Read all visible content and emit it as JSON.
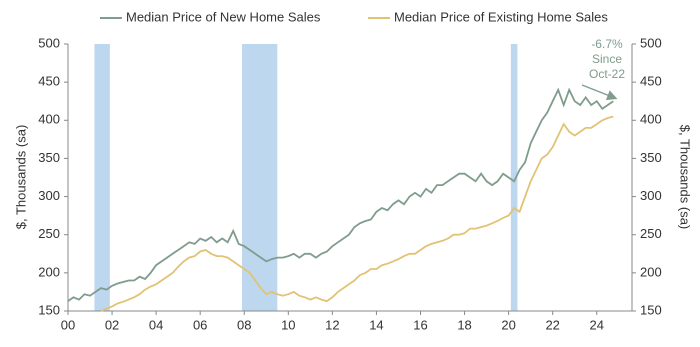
{
  "chart_data": {
    "type": "line",
    "legend": "top",
    "x": [
      2000,
      2000.25,
      2000.5,
      2000.75,
      2001,
      2001.25,
      2001.5,
      2001.75,
      2002,
      2002.25,
      2002.5,
      2002.75,
      2003,
      2003.25,
      2003.5,
      2003.75,
      2004,
      2004.25,
      2004.5,
      2004.75,
      2005,
      2005.25,
      2005.5,
      2005.75,
      2006,
      2006.25,
      2006.5,
      2006.75,
      2007,
      2007.25,
      2007.5,
      2007.75,
      2008,
      2008.25,
      2008.5,
      2008.75,
      2009,
      2009.25,
      2009.5,
      2009.75,
      2010,
      2010.25,
      2010.5,
      2010.75,
      2011,
      2011.25,
      2011.5,
      2011.75,
      2012,
      2012.25,
      2012.5,
      2012.75,
      2013,
      2013.25,
      2013.5,
      2013.75,
      2014,
      2014.25,
      2014.5,
      2014.75,
      2015,
      2015.25,
      2015.5,
      2015.75,
      2016,
      2016.25,
      2016.5,
      2016.75,
      2017,
      2017.25,
      2017.5,
      2017.75,
      2018,
      2018.25,
      2018.5,
      2018.75,
      2019,
      2019.25,
      2019.5,
      2019.75,
      2020,
      2020.25,
      2020.5,
      2020.75,
      2021,
      2021.25,
      2021.5,
      2021.75,
      2022,
      2022.25,
      2022.5,
      2022.75,
      2023,
      2023.25,
      2023.5,
      2023.75,
      2024,
      2024.25,
      2024.5,
      2024.75
    ],
    "series": [
      {
        "name": "Median Price of New Home Sales",
        "color": "#7f9c8c",
        "values": [
          163,
          168,
          165,
          172,
          170,
          175,
          180,
          178,
          183,
          186,
          188,
          190,
          190,
          195,
          192,
          200,
          210,
          215,
          220,
          225,
          230,
          235,
          240,
          238,
          245,
          242,
          247,
          240,
          245,
          240,
          255,
          238,
          235,
          230,
          225,
          220,
          215,
          218,
          220,
          220,
          222,
          225,
          220,
          225,
          225,
          220,
          225,
          228,
          235,
          240,
          245,
          250,
          260,
          265,
          268,
          270,
          280,
          285,
          282,
          290,
          295,
          290,
          300,
          305,
          300,
          310,
          305,
          315,
          315,
          320,
          325,
          330,
          330,
          325,
          320,
          330,
          320,
          315,
          320,
          330,
          325,
          320,
          335,
          345,
          370,
          385,
          400,
          410,
          425,
          440,
          420,
          440,
          425,
          420,
          430,
          420,
          425,
          415,
          420,
          425
        ]
      },
      {
        "name": "Median Price of Existing Home Sales",
        "color": "#e2c274",
        "values": [
          null,
          null,
          null,
          null,
          null,
          null,
          150,
          153,
          156,
          160,
          162,
          165,
          168,
          172,
          178,
          182,
          185,
          190,
          195,
          200,
          208,
          215,
          220,
          222,
          228,
          230,
          225,
          222,
          222,
          220,
          215,
          210,
          205,
          200,
          190,
          180,
          172,
          175,
          172,
          170,
          172,
          175,
          170,
          168,
          165,
          168,
          165,
          163,
          168,
          175,
          180,
          185,
          190,
          197,
          200,
          205,
          205,
          210,
          212,
          215,
          218,
          222,
          225,
          225,
          230,
          235,
          238,
          240,
          242,
          245,
          250,
          250,
          252,
          258,
          258,
          260,
          262,
          265,
          268,
          272,
          275,
          285,
          280,
          300,
          320,
          335,
          350,
          355,
          365,
          380,
          395,
          385,
          380,
          385,
          390,
          390,
          395,
          400,
          403,
          405
        ]
      }
    ],
    "recessions": [
      [
        2001.2,
        2001.9
      ],
      [
        2007.9,
        2009.5
      ],
      [
        2020.1,
        2020.4
      ]
    ],
    "recession_color": "#bdd7ee",
    "xlim": [
      2000,
      2025.6
    ],
    "xticks": [
      {
        "value": 2000,
        "label": "00"
      },
      {
        "value": 2002,
        "label": "02"
      },
      {
        "value": 2004,
        "label": "04"
      },
      {
        "value": 2006,
        "label": "06"
      },
      {
        "value": 2008,
        "label": "08"
      },
      {
        "value": 2010,
        "label": "10"
      },
      {
        "value": 2012,
        "label": "12"
      },
      {
        "value": 2014,
        "label": "14"
      },
      {
        "value": 2016,
        "label": "16"
      },
      {
        "value": 2018,
        "label": "18"
      },
      {
        "value": 2020,
        "label": "20"
      },
      {
        "value": 2022,
        "label": "22"
      },
      {
        "value": 2024,
        "label": "24"
      }
    ],
    "ylim": [
      150,
      500
    ],
    "yticks": [
      150,
      200,
      250,
      300,
      350,
      400,
      450,
      500
    ],
    "y2lim": [
      150,
      500
    ],
    "y2ticks": [
      150,
      200,
      250,
      300,
      350,
      400,
      450,
      500
    ],
    "ylabel": "$, Thousands (sa)",
    "y2label": "$, Thousands (sa)",
    "annotation": [
      "-6.7%",
      "Since",
      "Oct-22"
    ]
  }
}
